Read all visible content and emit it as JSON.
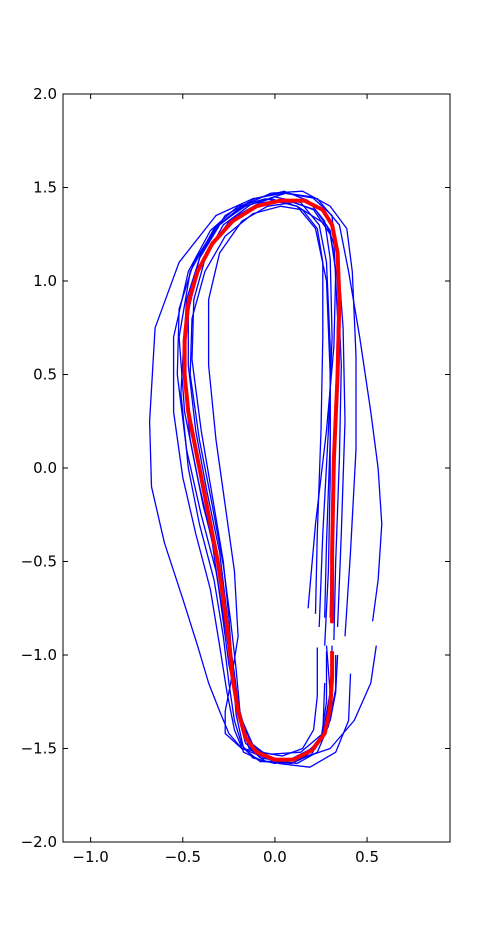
{
  "chart_data": {
    "type": "line",
    "title": "",
    "xlabel": "",
    "ylabel": "",
    "xlim": [
      -1.15,
      0.95
    ],
    "ylim": [
      -2.0,
      2.0
    ],
    "grid": false,
    "x_ticks": [
      -1.0,
      -0.5,
      0.0,
      0.5
    ],
    "x_tick_labels": [
      "−1.0",
      "−0.5",
      "0.0",
      "0.5"
    ],
    "y_ticks": [
      2.0,
      1.5,
      1.0,
      0.5,
      0.0,
      -0.5,
      -1.0,
      -1.5,
      -2.0
    ],
    "y_tick_labels": [
      "2.0",
      "1.5",
      "1.0",
      "0.5",
      "0.0",
      "−0.5",
      "−1.0",
      "−1.5",
      "−2.0"
    ],
    "colors": {
      "trials": "#0000ff",
      "mean": "#ff0000",
      "axes": "#000000",
      "background": "#ffffff"
    },
    "series": [
      {
        "role": "trial",
        "x": [
          0.3,
          0.31,
          0.33,
          0.34,
          0.32,
          0.31,
          0.2,
          0.06,
          -0.13,
          -0.28,
          -0.42,
          -0.49,
          -0.51,
          -0.47,
          -0.41,
          -0.33,
          -0.28,
          -0.25,
          -0.22,
          -0.18,
          -0.12,
          0.0,
          0.14,
          0.25,
          0.3,
          0.31
        ],
        "y": [
          -0.8,
          -0.3,
          0.3,
          0.8,
          1.2,
          1.35,
          1.45,
          1.47,
          1.41,
          1.3,
          1.05,
          0.75,
          0.4,
          0.0,
          -0.3,
          -0.6,
          -0.9,
          -1.15,
          -1.35,
          -1.48,
          -1.55,
          -1.58,
          -1.55,
          -1.45,
          -1.25,
          -0.95
        ]
      },
      {
        "role": "trial",
        "x": [
          0.34,
          0.36,
          0.38,
          0.37,
          0.34,
          0.28,
          0.12,
          -0.05,
          -0.2,
          -0.35,
          -0.47,
          -0.55,
          -0.55,
          -0.5,
          -0.43,
          -0.35,
          -0.3,
          -0.26,
          -0.22,
          -0.17,
          -0.06,
          0.1,
          0.22,
          0.3,
          0.33,
          0.34
        ],
        "y": [
          -0.85,
          -0.35,
          0.25,
          0.75,
          1.15,
          1.3,
          1.4,
          1.44,
          1.4,
          1.27,
          1.05,
          0.7,
          0.3,
          -0.05,
          -0.35,
          -0.65,
          -0.95,
          -1.2,
          -1.4,
          -1.52,
          -1.57,
          -1.56,
          -1.5,
          -1.35,
          -1.2,
          -1.0
        ]
      },
      {
        "role": "trial",
        "x": [
          0.27,
          0.28,
          0.3,
          0.3,
          0.28,
          0.24,
          0.14,
          0.0,
          -0.16,
          -0.31,
          -0.44,
          -0.52,
          -0.53,
          -0.48,
          -0.4,
          -0.32,
          -0.27,
          -0.23,
          -0.2,
          -0.16,
          -0.08,
          0.05,
          0.17,
          0.25,
          0.28,
          0.28
        ],
        "y": [
          -0.8,
          -0.4,
          0.15,
          0.65,
          1.1,
          1.3,
          1.42,
          1.45,
          1.4,
          1.3,
          1.1,
          0.85,
          0.5,
          0.1,
          -0.25,
          -0.55,
          -0.85,
          -1.1,
          -1.32,
          -1.47,
          -1.55,
          -1.57,
          -1.54,
          -1.45,
          -1.25,
          -0.98
        ]
      },
      {
        "role": "trial",
        "x": [
          0.53,
          0.56,
          0.58,
          0.56,
          0.52,
          0.46,
          0.4,
          0.35,
          0.23,
          0.05,
          -0.12,
          -0.32,
          -0.52,
          -0.65,
          -0.68,
          -0.67,
          -0.6,
          -0.5,
          -0.42,
          -0.36,
          -0.3,
          -0.25,
          -0.18,
          -0.05,
          0.12,
          0.3,
          0.43,
          0.52,
          0.55
        ],
        "y": [
          -0.82,
          -0.6,
          -0.3,
          0.0,
          0.3,
          0.7,
          1.05,
          1.3,
          1.44,
          1.47,
          1.44,
          1.35,
          1.1,
          0.75,
          0.25,
          -0.1,
          -0.4,
          -0.7,
          -0.95,
          -1.15,
          -1.3,
          -1.42,
          -1.5,
          -1.55,
          -1.56,
          -1.5,
          -1.35,
          -1.15,
          -0.95
        ]
      },
      {
        "role": "trial",
        "x": [
          0.22,
          0.23,
          0.25,
          0.26,
          0.26,
          0.23,
          0.15,
          0.03,
          -0.12,
          -0.27,
          -0.38,
          -0.45,
          -0.46,
          -0.41,
          -0.34,
          -0.28,
          -0.24,
          -0.21,
          -0.19,
          -0.15,
          -0.08,
          0.04,
          0.15,
          0.21,
          0.23,
          0.23
        ],
        "y": [
          -0.78,
          -0.35,
          0.2,
          0.7,
          1.1,
          1.28,
          1.38,
          1.4,
          1.36,
          1.24,
          1.05,
          0.8,
          0.5,
          0.15,
          -0.2,
          -0.52,
          -0.82,
          -1.08,
          -1.3,
          -1.45,
          -1.52,
          -1.54,
          -1.5,
          -1.4,
          -1.22,
          -0.96
        ]
      },
      {
        "role": "trial",
        "x": [
          0.38,
          0.41,
          0.44,
          0.44,
          0.42,
          0.39,
          0.3,
          0.15,
          -0.02,
          -0.18,
          -0.33,
          -0.46,
          -0.52,
          -0.49,
          -0.42,
          -0.34,
          -0.29,
          -0.25,
          -0.2,
          -0.12,
          0.02,
          0.19,
          0.33,
          0.4,
          0.41
        ],
        "y": [
          -0.9,
          -0.45,
          0.1,
          0.6,
          1.05,
          1.28,
          1.4,
          1.48,
          1.47,
          1.4,
          1.28,
          1.05,
          0.7,
          0.3,
          -0.05,
          -0.4,
          -0.75,
          -1.05,
          -1.3,
          -1.48,
          -1.58,
          -1.6,
          -1.52,
          -1.35,
          -1.1
        ]
      },
      {
        "role": "trial",
        "x": [
          0.24,
          0.26,
          0.29,
          0.31,
          0.3,
          0.27,
          0.18,
          0.05,
          -0.11,
          -0.27,
          -0.4,
          -0.48,
          -0.5,
          -0.46,
          -0.39,
          -0.31,
          -0.26,
          -0.22,
          -0.19,
          -0.14,
          -0.05,
          0.09,
          0.2,
          0.26,
          0.27
        ],
        "y": [
          -0.85,
          -0.35,
          0.2,
          0.7,
          1.12,
          1.32,
          1.43,
          1.48,
          1.44,
          1.35,
          1.15,
          0.9,
          0.55,
          0.15,
          -0.2,
          -0.5,
          -0.82,
          -1.1,
          -1.33,
          -1.5,
          -1.57,
          -1.58,
          -1.53,
          -1.42,
          -1.15
        ]
      },
      {
        "role": "trial",
        "x": [
          0.32,
          0.33,
          0.35,
          0.36,
          0.34,
          0.3,
          0.21,
          0.08,
          -0.08,
          -0.24,
          -0.37,
          -0.44,
          -0.45,
          -0.4,
          -0.34,
          -0.28,
          -0.25,
          -0.23,
          -0.21,
          -0.17,
          -0.08,
          0.06,
          0.2,
          0.29,
          0.33,
          0.33
        ],
        "y": [
          -0.92,
          -0.5,
          0.05,
          0.55,
          1.0,
          1.25,
          1.38,
          1.43,
          1.42,
          1.33,
          1.15,
          0.9,
          0.58,
          0.2,
          -0.15,
          -0.5,
          -0.8,
          -1.08,
          -1.32,
          -1.5,
          -1.57,
          -1.57,
          -1.5,
          -1.38,
          -1.18,
          -1.0
        ]
      },
      {
        "role": "trial",
        "x": [
          0.18,
          0.22,
          0.28,
          0.32,
          0.33,
          0.3,
          0.22,
          0.1,
          -0.04,
          -0.18,
          -0.3,
          -0.36,
          -0.36,
          -0.32,
          -0.27,
          -0.22,
          -0.2,
          -0.24,
          -0.27,
          -0.27,
          -0.18,
          -0.02,
          0.14,
          0.26,
          0.3,
          0.28
        ],
        "y": [
          -0.75,
          -0.3,
          0.2,
          0.65,
          1.05,
          1.27,
          1.38,
          1.42,
          1.4,
          1.32,
          1.15,
          0.9,
          0.55,
          0.15,
          -0.2,
          -0.55,
          -0.9,
          -1.15,
          -1.3,
          -1.42,
          -1.5,
          -1.53,
          -1.52,
          -1.42,
          -1.2,
          -0.95
        ]
      },
      {
        "role": "trial",
        "x": [
          0.27,
          0.29,
          0.3,
          0.3,
          0.28,
          0.22,
          0.12,
          -0.02,
          -0.17,
          -0.3,
          -0.41,
          -0.47,
          -0.47,
          -0.43,
          -0.37,
          -0.3,
          -0.26,
          -0.24,
          -0.2,
          -0.13,
          -0.02,
          0.12,
          0.23,
          0.29,
          0.3
        ],
        "y": [
          -0.95,
          -0.55,
          -0.05,
          0.5,
          1.0,
          1.28,
          1.4,
          1.44,
          1.4,
          1.3,
          1.12,
          0.88,
          0.55,
          0.2,
          -0.12,
          -0.45,
          -0.78,
          -1.05,
          -1.3,
          -1.47,
          -1.56,
          -1.58,
          -1.52,
          -1.38,
          -1.15
        ]
      },
      {
        "role": "mean",
        "x": [
          0.31,
          0.31,
          0.32,
          0.34,
          0.35,
          0.34,
          0.31,
          0.26,
          0.16,
          0.03,
          -0.1,
          -0.23,
          -0.34,
          -0.42,
          -0.47,
          -0.49,
          -0.49,
          -0.47,
          -0.43,
          -0.39,
          -0.35,
          -0.31,
          -0.28,
          -0.25,
          -0.23,
          -0.2,
          -0.16,
          -0.1,
          0.0,
          0.1,
          0.2,
          0.27,
          0.3,
          0.31,
          0.31
        ],
        "y": [
          -0.83,
          -0.45,
          0.05,
          0.5,
          0.9,
          1.15,
          1.3,
          1.38,
          1.43,
          1.43,
          1.4,
          1.32,
          1.2,
          1.05,
          0.88,
          0.68,
          0.5,
          0.3,
          0.1,
          -0.1,
          -0.3,
          -0.5,
          -0.7,
          -0.92,
          -1.12,
          -1.3,
          -1.44,
          -1.52,
          -1.56,
          -1.56,
          -1.51,
          -1.42,
          -1.28,
          -1.12,
          -0.98
        ]
      }
    ]
  }
}
